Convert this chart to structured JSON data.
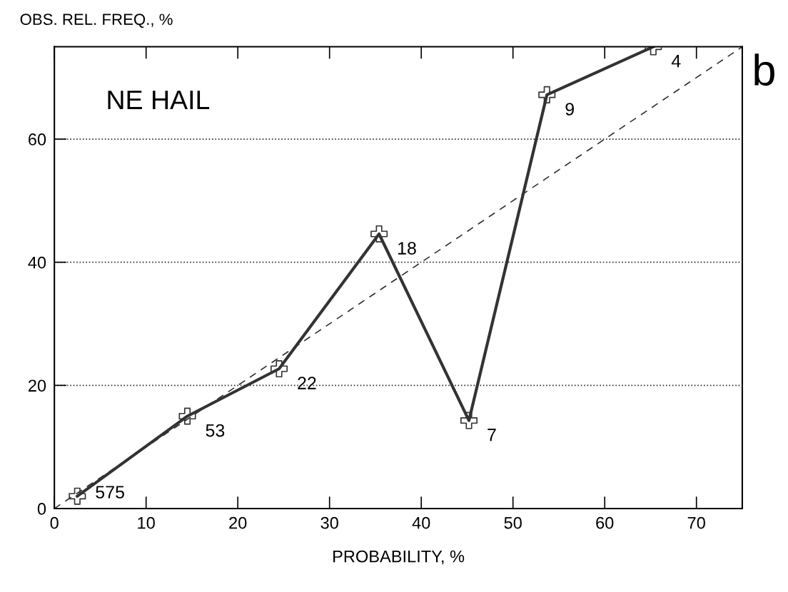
{
  "chart_data": {
    "type": "line",
    "title": "NE HAIL",
    "xlabel": "PROBABILITY, %",
    "ylabel": "OBS. REL. FREQ., %",
    "xlim": [
      0,
      75
    ],
    "ylim": [
      0,
      75
    ],
    "xticks": [
      0,
      10,
      20,
      30,
      40,
      50,
      60,
      70
    ],
    "yticks": [
      0,
      20,
      40,
      60
    ],
    "grid": "y",
    "series": [
      {
        "color": "#333333",
        "marker": "cross",
        "line_style": "solid",
        "x": [
          2.5,
          14.5,
          24.5,
          35.4,
          45.2,
          53.7,
          65.3
        ],
        "values": [
          2,
          15,
          22.7,
          44.6,
          14.3,
          67.2,
          75
        ]
      },
      {
        "color": "#333333",
        "marker": "none",
        "line_style": "dashed",
        "x": [
          0,
          75
        ],
        "values": [
          0,
          75
        ]
      }
    ],
    "annotations": [
      {
        "text": "575",
        "x": 2.5,
        "y": 2
      },
      {
        "text": "53",
        "x": 14.5,
        "y": 15
      },
      {
        "text": "22",
        "x": 24.5,
        "y": 22.7
      },
      {
        "text": "18",
        "x": 35.4,
        "y": 44.6
      },
      {
        "text": "7",
        "x": 45.2,
        "y": 14.3
      },
      {
        "text": "9",
        "x": 53.7,
        "y": 67.2
      },
      {
        "text": "4",
        "x": 65.3,
        "y": 75
      },
      "b"
    ]
  }
}
